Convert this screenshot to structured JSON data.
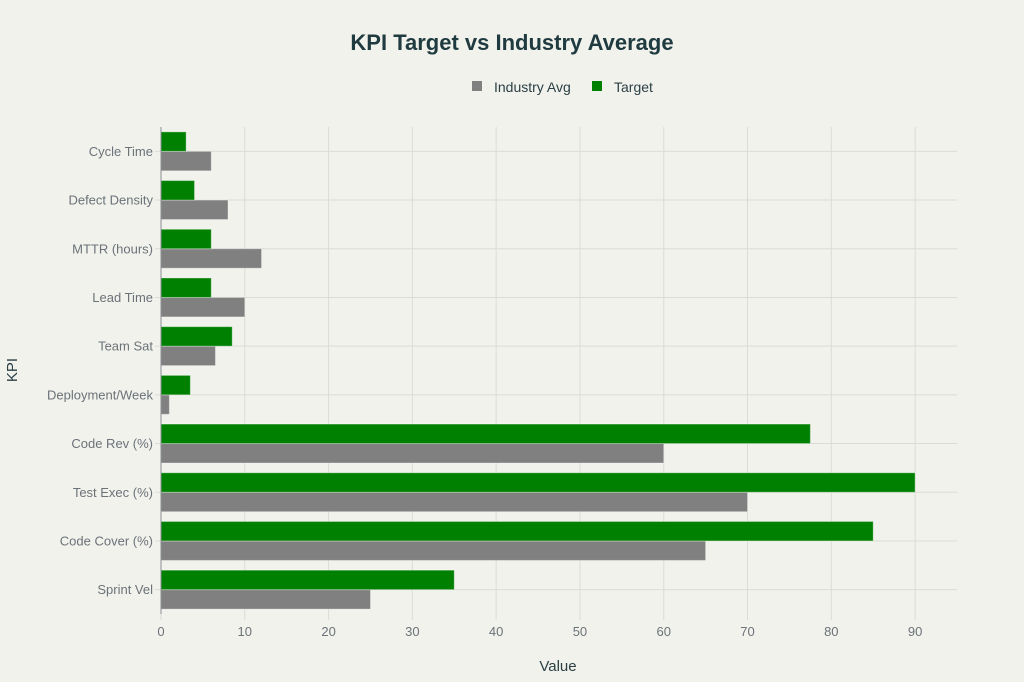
{
  "chart_data": {
    "type": "bar",
    "orientation": "horizontal",
    "title": "KPI Target vs Industry Average",
    "xlabel": "Value",
    "ylabel": "KPI",
    "xlim": [
      0,
      95
    ],
    "xticks": [
      0,
      10,
      20,
      30,
      40,
      50,
      60,
      70,
      80,
      90
    ],
    "grid": true,
    "legend_position": "top-center",
    "categories": [
      "Sprint Vel",
      "Code Cover (%)",
      "Test Exec (%)",
      "Code Rev (%)",
      "Deployment/Week",
      "Team Sat",
      "Lead Time",
      "MTTR (hours)",
      "Defect Density",
      "Cycle Time"
    ],
    "series": [
      {
        "name": "Industry Avg",
        "color": "#808080",
        "values": [
          25,
          65,
          70,
          60,
          1,
          6.5,
          10,
          12,
          8,
          6
        ]
      },
      {
        "name": "Target",
        "color": "#008000",
        "values": [
          35,
          85,
          90,
          77.5,
          3.5,
          8.5,
          6,
          6,
          4,
          3
        ]
      }
    ]
  }
}
